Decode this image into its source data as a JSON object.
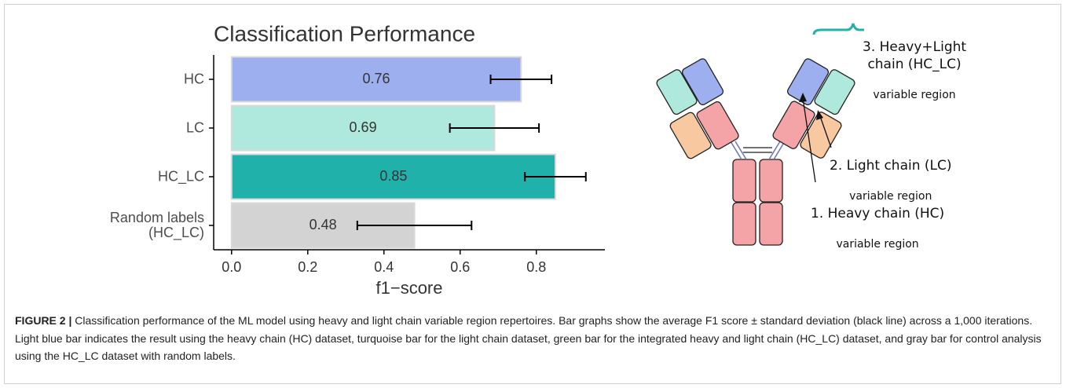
{
  "chart_data": {
    "type": "bar",
    "orientation": "horizontal",
    "title": "Classification Performance",
    "x_label": "f1−score",
    "categories": [
      "HC",
      "LC",
      "HC_LC",
      "Random labels\n(HC_LC)"
    ],
    "values": [
      0.76,
      0.69,
      0.85,
      0.48
    ],
    "errors": [
      0.08,
      0.117,
      0.08,
      0.15
    ],
    "colors": [
      "#9dafee",
      "#afe8dc",
      "#20b2aa",
      "#d3d3d3"
    ],
    "error_color": "#000000",
    "xlim": [
      -0.047,
      0.98
    ],
    "xticks": [
      {
        "value": 0,
        "label": "0.0"
      },
      0.2,
      0.4,
      0.6,
      0.8
    ]
  },
  "diagram": {
    "labels": [
      {
        "title": "3. Heavy+Light\nchain (HC_LC)",
        "subtitle": "variable region"
      },
      {
        "title": "2. Light chain (LC)",
        "subtitle": "variable region"
      },
      {
        "title": "1. Heavy chain (HC)",
        "subtitle": "variable region"
      }
    ]
  },
  "caption": {
    "label": "FIGURE 2 |",
    "text": "Classification performance of the ML model using heavy and light chain variable region repertoires. Bar graphs show the average F1 score ± standard deviation (black line) across a 1,000 iterations. Light blue bar indicates the result using the heavy chain (HC) dataset, turquoise bar for the light chain dataset, green bar for the integrated heavy and light chain (HC_LC) dataset, and gray bar for control analysis using the HC_LC dataset with random labels."
  }
}
